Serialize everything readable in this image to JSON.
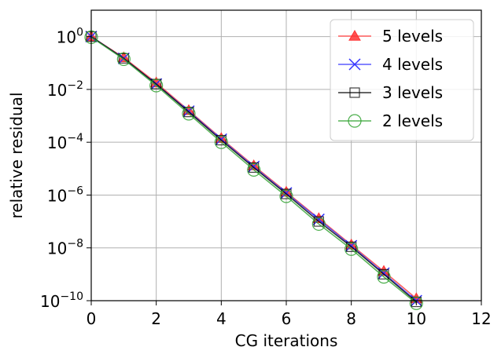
{
  "chart_data": {
    "type": "line",
    "title": "",
    "xlabel": "CG iterations",
    "ylabel": "relative residual",
    "xlim": [
      0,
      12
    ],
    "ylim_log10": [
      -10,
      1
    ],
    "yscale": "log",
    "grid": true,
    "legend_position": "top-right",
    "x_ticks": [
      0,
      2,
      4,
      6,
      8,
      10,
      12
    ],
    "x_tick_labels": [
      "0",
      "2",
      "4",
      "6",
      "8",
      "10",
      "12"
    ],
    "y_ticks_exponents": [
      0,
      -2,
      -4,
      -6,
      -8,
      -10
    ],
    "y_tick_base": "10",
    "y_tick_exponent_labels": [
      "0",
      "−2",
      "−4",
      "−6",
      "−8",
      "−10"
    ],
    "x": [
      0,
      1,
      2,
      3,
      4,
      5,
      6,
      7,
      8,
      9,
      10
    ],
    "series": [
      {
        "name": "5 levels",
        "color": "#ff3333",
        "marker": "triangle",
        "values": [
          1.0,
          0.16,
          0.018,
          0.0016,
          0.00014,
          1.3e-05,
          1.3e-06,
          1.3e-07,
          1.3e-08,
          1.3e-09,
          1.2e-10
        ]
      },
      {
        "name": "4 levels",
        "color": "#3333ff",
        "marker": "x",
        "values": [
          1.0,
          0.15,
          0.016,
          0.0015,
          0.00013,
          1.2e-05,
          1.2e-06,
          1.2e-07,
          1.2e-08,
          1.1e-09,
          1e-10
        ]
      },
      {
        "name": "3 levels",
        "color": "#000000",
        "marker": "square",
        "values": [
          1.0,
          0.15,
          0.016,
          0.0014,
          0.00012,
          1.1e-05,
          1.1e-06,
          1e-07,
          1.1e-08,
          1e-09,
          9e-11
        ]
      },
      {
        "name": "2 levels",
        "color": "#2ca02c",
        "marker": "circle",
        "values": [
          0.95,
          0.14,
          0.014,
          0.0012,
          0.0001,
          9e-06,
          9e-07,
          8e-08,
          9e-09,
          8e-10,
          8e-11
        ]
      }
    ]
  }
}
